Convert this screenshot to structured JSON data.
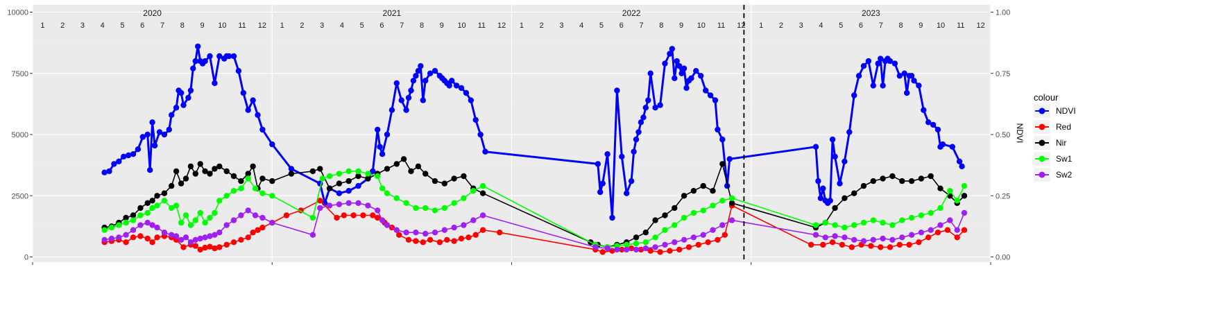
{
  "chart_data": {
    "type": "line",
    "title": "",
    "xlabel": "",
    "ylabel_left": "",
    "ylabel_right": "NDVI",
    "ylim_left": [
      0,
      10000
    ],
    "ylim_right": [
      0.0,
      1.0
    ],
    "yticks_left": [
      "0",
      "2500",
      "5000",
      "7500",
      "10000"
    ],
    "yticks_right": [
      "0.00",
      "0.25",
      "0.50",
      "0.75",
      "1.00"
    ],
    "x_range": [
      2020.0,
      2024.0
    ],
    "years": [
      "2020",
      "2021",
      "2022",
      "2023"
    ],
    "months": [
      "1",
      "2",
      "3",
      "4",
      "5",
      "6",
      "7",
      "8",
      "9",
      "10",
      "11",
      "12"
    ],
    "vline_x": 2022.97,
    "grid": true,
    "legend": {
      "title": "colour",
      "position": "right"
    },
    "series": [
      {
        "name": "NDVI",
        "color": "#0000FF",
        "x": [
          2020.3,
          2020.32,
          2020.34,
          2020.36,
          2020.38,
          2020.4,
          2020.42,
          2020.44,
          2020.46,
          2020.48,
          2020.49,
          2020.5,
          2020.51,
          2020.53,
          2020.55,
          2020.57,
          2020.58,
          2020.6,
          2020.61,
          2020.62,
          2020.63,
          2020.65,
          2020.66,
          2020.67,
          2020.68,
          2020.69,
          2020.7,
          2020.71,
          2020.72,
          2020.74,
          2020.76,
          2020.78,
          2020.8,
          2020.81,
          2020.82,
          2020.84,
          2020.86,
          2020.88,
          2020.9,
          2020.92,
          2020.94,
          2020.96,
          2021.0,
          2021.08,
          2021.2,
          2021.22,
          2021.24,
          2021.28,
          2021.32,
          2021.36,
          2021.4,
          2021.42,
          2021.44,
          2021.45,
          2021.46,
          2021.48,
          2021.5,
          2021.52,
          2021.54,
          2021.56,
          2021.57,
          2021.58,
          2021.59,
          2021.6,
          2021.61,
          2021.62,
          2021.63,
          2021.64,
          2021.66,
          2021.68,
          2021.7,
          2021.71,
          2021.72,
          2021.73,
          2021.74,
          2021.75,
          2021.77,
          2021.79,
          2021.81,
          2021.83,
          2021.85,
          2021.87,
          2021.89,
          2022.36,
          2022.37,
          2022.38,
          2022.4,
          2022.42,
          2022.44,
          2022.46,
          2022.48,
          2022.5,
          2022.51,
          2022.52,
          2022.53,
          2022.54,
          2022.55,
          2022.56,
          2022.57,
          2022.58,
          2022.6,
          2022.62,
          2022.64,
          2022.66,
          2022.67,
          2022.68,
          2022.69,
          2022.7,
          2022.71,
          2022.72,
          2022.73,
          2022.74,
          2022.75,
          2022.77,
          2022.79,
          2022.81,
          2022.83,
          2022.85,
          2022.86,
          2022.88,
          2022.9,
          2022.91,
          2023.27,
          2023.28,
          2023.29,
          2023.3,
          2023.31,
          2023.32,
          2023.33,
          2023.34,
          2023.35,
          2023.37,
          2023.39,
          2023.41,
          2023.43,
          2023.45,
          2023.47,
          2023.49,
          2023.51,
          2023.53,
          2023.54,
          2023.55,
          2023.56,
          2023.57,
          2023.58,
          2023.6,
          2023.62,
          2023.64,
          2023.65,
          2023.66,
          2023.67,
          2023.68,
          2023.7,
          2023.72,
          2023.74,
          2023.76,
          2023.78,
          2023.79,
          2023.8,
          2023.84,
          2023.87,
          2023.88
        ],
        "y": [
          0.345,
          0.35,
          0.38,
          0.39,
          0.41,
          0.415,
          0.42,
          0.44,
          0.49,
          0.5,
          0.355,
          0.55,
          0.455,
          0.51,
          0.5,
          0.52,
          0.58,
          0.61,
          0.68,
          0.67,
          0.62,
          0.65,
          0.68,
          0.77,
          0.8,
          0.86,
          0.8,
          0.79,
          0.8,
          0.82,
          0.71,
          0.82,
          0.81,
          0.82,
          0.82,
          0.82,
          0.76,
          0.67,
          0.6,
          0.64,
          0.58,
          0.52,
          0.46,
          0.36,
          0.3,
          0.22,
          0.28,
          0.26,
          0.27,
          0.29,
          0.32,
          0.35,
          0.52,
          0.45,
          0.42,
          0.5,
          0.6,
          0.71,
          0.64,
          0.6,
          0.65,
          0.68,
          0.72,
          0.74,
          0.76,
          0.78,
          0.64,
          0.72,
          0.75,
          0.76,
          0.74,
          0.73,
          0.72,
          0.71,
          0.7,
          0.72,
          0.7,
          0.69,
          0.67,
          0.64,
          0.56,
          0.5,
          0.43,
          0.38,
          0.265,
          0.3,
          0.42,
          0.16,
          0.68,
          0.41,
          0.26,
          0.31,
          0.43,
          0.48,
          0.51,
          0.55,
          0.57,
          0.61,
          0.64,
          0.75,
          0.61,
          0.62,
          0.79,
          0.83,
          0.85,
          0.73,
          0.8,
          0.78,
          0.75,
          0.77,
          0.69,
          0.72,
          0.73,
          0.76,
          0.74,
          0.68,
          0.66,
          0.64,
          0.52,
          0.48,
          0.29,
          0.4,
          0.45,
          0.31,
          0.24,
          0.28,
          0.23,
          0.22,
          0.23,
          0.48,
          0.41,
          0.3,
          0.39,
          0.51,
          0.66,
          0.74,
          0.78,
          0.8,
          0.7,
          0.79,
          0.81,
          0.7,
          0.8,
          0.81,
          0.8,
          0.79,
          0.74,
          0.75,
          0.67,
          0.74,
          0.74,
          0.72,
          0.7,
          0.6,
          0.55,
          0.54,
          0.52,
          0.45,
          0.46,
          0.45,
          0.39,
          0.37
        ]
      },
      {
        "name": "Red",
        "color": "#FF0000",
        "x": [
          2020.3,
          2020.33,
          2020.36,
          2020.39,
          2020.42,
          2020.45,
          2020.48,
          2020.5,
          2020.52,
          2020.55,
          2020.58,
          2020.6,
          2020.63,
          2020.66,
          2020.68,
          2020.7,
          2020.72,
          2020.74,
          2020.76,
          2020.78,
          2020.81,
          2020.84,
          2020.87,
          2020.9,
          2020.92,
          2020.94,
          2020.96,
          2021.0,
          2021.06,
          2021.12,
          2021.2,
          2021.27,
          2021.3,
          2021.34,
          2021.38,
          2021.42,
          2021.44,
          2021.47,
          2021.5,
          2021.53,
          2021.57,
          2021.6,
          2021.63,
          2021.66,
          2021.7,
          2021.73,
          2021.76,
          2021.79,
          2021.82,
          2021.85,
          2021.88,
          2021.95,
          2022.35,
          2022.38,
          2022.42,
          2022.46,
          2022.5,
          2022.54,
          2022.58,
          2022.62,
          2022.66,
          2022.7,
          2022.74,
          2022.78,
          2022.82,
          2022.86,
          2022.89,
          2022.92,
          2023.25,
          2023.3,
          2023.34,
          2023.38,
          2023.42,
          2023.46,
          2023.5,
          2023.54,
          2023.58,
          2023.62,
          2023.66,
          2023.7,
          2023.74,
          2023.78,
          2023.82,
          2023.86,
          2023.89
        ],
        "y": [
          600,
          650,
          700,
          600,
          800,
          850,
          750,
          600,
          800,
          850,
          800,
          700,
          400,
          500,
          450,
          300,
          380,
          420,
          350,
          400,
          500,
          600,
          700,
          800,
          1000,
          1100,
          1200,
          1400,
          1700,
          1900,
          2300,
          1600,
          1700,
          1700,
          1700,
          1700,
          1600,
          1400,
          1200,
          900,
          700,
          650,
          600,
          700,
          600,
          700,
          650,
          750,
          800,
          900,
          1100,
          1000,
          300,
          200,
          250,
          300,
          350,
          300,
          250,
          200,
          250,
          300,
          400,
          500,
          600,
          700,
          900,
          2100,
          500,
          500,
          600,
          500,
          400,
          500,
          450,
          400,
          400,
          500,
          500,
          600,
          800,
          1000,
          1100,
          800,
          1100
        ]
      },
      {
        "name": "Nir",
        "color": "#000000",
        "x": [
          2020.3,
          2020.33,
          2020.36,
          2020.39,
          2020.42,
          2020.45,
          2020.48,
          2020.5,
          2020.52,
          2020.55,
          2020.58,
          2020.6,
          2020.62,
          2020.64,
          2020.66,
          2020.68,
          2020.7,
          2020.72,
          2020.74,
          2020.76,
          2020.78,
          2020.81,
          2020.84,
          2020.87,
          2020.9,
          2020.92,
          2020.94,
          2020.96,
          2021.0,
          2021.08,
          2021.17,
          2021.2,
          2021.24,
          2021.28,
          2021.32,
          2021.36,
          2021.4,
          2021.44,
          2021.48,
          2021.52,
          2021.55,
          2021.58,
          2021.61,
          2021.64,
          2021.68,
          2021.72,
          2021.76,
          2021.8,
          2021.84,
          2021.88,
          2022.33,
          2022.36,
          2022.4,
          2022.44,
          2022.48,
          2022.52,
          2022.56,
          2022.6,
          2022.64,
          2022.68,
          2022.72,
          2022.76,
          2022.8,
          2022.84,
          2022.88,
          2022.92,
          2023.27,
          2023.31,
          2023.35,
          2023.39,
          2023.43,
          2023.47,
          2023.51,
          2023.55,
          2023.59,
          2023.63,
          2023.67,
          2023.71,
          2023.75,
          2023.79,
          2023.83,
          2023.86,
          2023.89
        ],
        "y": [
          1200,
          1250,
          1400,
          1600,
          1700,
          2000,
          2200,
          2300,
          2500,
          2600,
          2900,
          3500,
          3000,
          3200,
          3700,
          3400,
          3800,
          3500,
          3400,
          3600,
          3700,
          3500,
          3300,
          3100,
          3400,
          3700,
          2800,
          3200,
          3100,
          3400,
          3500,
          3600,
          2800,
          3000,
          3100,
          3300,
          3200,
          3400,
          3600,
          3800,
          4000,
          3500,
          3700,
          3400,
          3100,
          3000,
          3200,
          3300,
          2800,
          2600,
          600,
          500,
          400,
          500,
          600,
          800,
          1000,
          1500,
          1700,
          2000,
          2500,
          2700,
          2900,
          2700,
          3800,
          2200,
          1200,
          1400,
          2000,
          2400,
          2600,
          2900,
          3100,
          3200,
          3300,
          3100,
          3100,
          3200,
          3300,
          2800,
          2500,
          2200,
          2500
        ]
      },
      {
        "name": "Sw1",
        "color": "#00FF00",
        "x": [
          2020.3,
          2020.33,
          2020.36,
          2020.39,
          2020.42,
          2020.45,
          2020.48,
          2020.5,
          2020.52,
          2020.55,
          2020.58,
          2020.6,
          2020.62,
          2020.64,
          2020.66,
          2020.68,
          2020.7,
          2020.72,
          2020.74,
          2020.76,
          2020.78,
          2020.81,
          2020.84,
          2020.87,
          2020.9,
          2020.93,
          2020.96,
          2021.0,
          2021.17,
          2021.21,
          2021.24,
          2021.28,
          2021.32,
          2021.36,
          2021.4,
          2021.44,
          2021.46,
          2021.48,
          2021.52,
          2021.56,
          2021.6,
          2021.64,
          2021.68,
          2021.72,
          2021.76,
          2021.8,
          2021.84,
          2021.88,
          2022.35,
          2022.4,
          2022.44,
          2022.48,
          2022.52,
          2022.56,
          2022.6,
          2022.64,
          2022.68,
          2022.72,
          2022.76,
          2022.8,
          2022.84,
          2022.88,
          2022.92,
          2023.27,
          2023.31,
          2023.35,
          2023.39,
          2023.43,
          2023.47,
          2023.51,
          2023.55,
          2023.59,
          2023.63,
          2023.67,
          2023.71,
          2023.75,
          2023.79,
          2023.83,
          2023.86,
          2023.89
        ],
        "y": [
          1100,
          1200,
          1300,
          1400,
          1500,
          1700,
          1800,
          2000,
          2100,
          2300,
          2000,
          2100,
          1400,
          1700,
          1300,
          1500,
          1800,
          1400,
          1600,
          1800,
          2300,
          2500,
          2700,
          2800,
          3200,
          2800,
          2600,
          2500,
          1600,
          3200,
          3300,
          3400,
          3500,
          3500,
          3400,
          3300,
          2800,
          2600,
          2400,
          2200,
          2000,
          2000,
          1900,
          2000,
          2200,
          2400,
          2700,
          2900,
          500,
          400,
          450,
          500,
          550,
          600,
          800,
          1100,
          1300,
          1600,
          1800,
          1900,
          2100,
          2300,
          2400,
          1300,
          1400,
          1300,
          1200,
          1300,
          1400,
          1500,
          1400,
          1300,
          1500,
          1600,
          1700,
          1800,
          2000,
          2700,
          2300,
          2900
        ]
      },
      {
        "name": "Sw2",
        "color": "#A020F0",
        "x": [
          2020.3,
          2020.33,
          2020.36,
          2020.39,
          2020.42,
          2020.45,
          2020.48,
          2020.5,
          2020.52,
          2020.55,
          2020.58,
          2020.6,
          2020.62,
          2020.64,
          2020.66,
          2020.68,
          2020.7,
          2020.72,
          2020.74,
          2020.76,
          2020.78,
          2020.81,
          2020.84,
          2020.87,
          2020.9,
          2020.93,
          2020.96,
          2021.0,
          2021.17,
          2021.2,
          2021.24,
          2021.28,
          2021.32,
          2021.36,
          2021.4,
          2021.44,
          2021.46,
          2021.48,
          2021.52,
          2021.56,
          2021.6,
          2021.64,
          2021.68,
          2021.72,
          2021.76,
          2021.8,
          2021.84,
          2021.88,
          2022.35,
          2022.4,
          2022.44,
          2022.48,
          2022.52,
          2022.56,
          2022.6,
          2022.64,
          2022.68,
          2022.72,
          2022.76,
          2022.8,
          2022.84,
          2022.88,
          2022.92,
          2023.27,
          2023.31,
          2023.35,
          2023.39,
          2023.43,
          2023.47,
          2023.51,
          2023.55,
          2023.59,
          2023.63,
          2023.67,
          2023.71,
          2023.75,
          2023.79,
          2023.83,
          2023.86,
          2023.89
        ],
        "y": [
          700,
          750,
          800,
          900,
          1100,
          1300,
          1400,
          1300,
          1200,
          1000,
          900,
          850,
          700,
          800,
          600,
          700,
          750,
          800,
          850,
          900,
          1000,
          1300,
          1500,
          1700,
          1900,
          1700,
          1600,
          1400,
          900,
          2000,
          2100,
          2150,
          2200,
          2200,
          2100,
          1900,
          1500,
          1300,
          1100,
          1000,
          1000,
          950,
          1000,
          1100,
          1200,
          1300,
          1500,
          1700,
          400,
          350,
          300,
          300,
          300,
          350,
          400,
          500,
          600,
          700,
          800,
          900,
          1100,
          1300,
          1500,
          900,
          800,
          850,
          800,
          700,
          650,
          700,
          750,
          700,
          800,
          900,
          1000,
          1100,
          1300,
          1500,
          1100,
          1800
        ]
      }
    ]
  }
}
